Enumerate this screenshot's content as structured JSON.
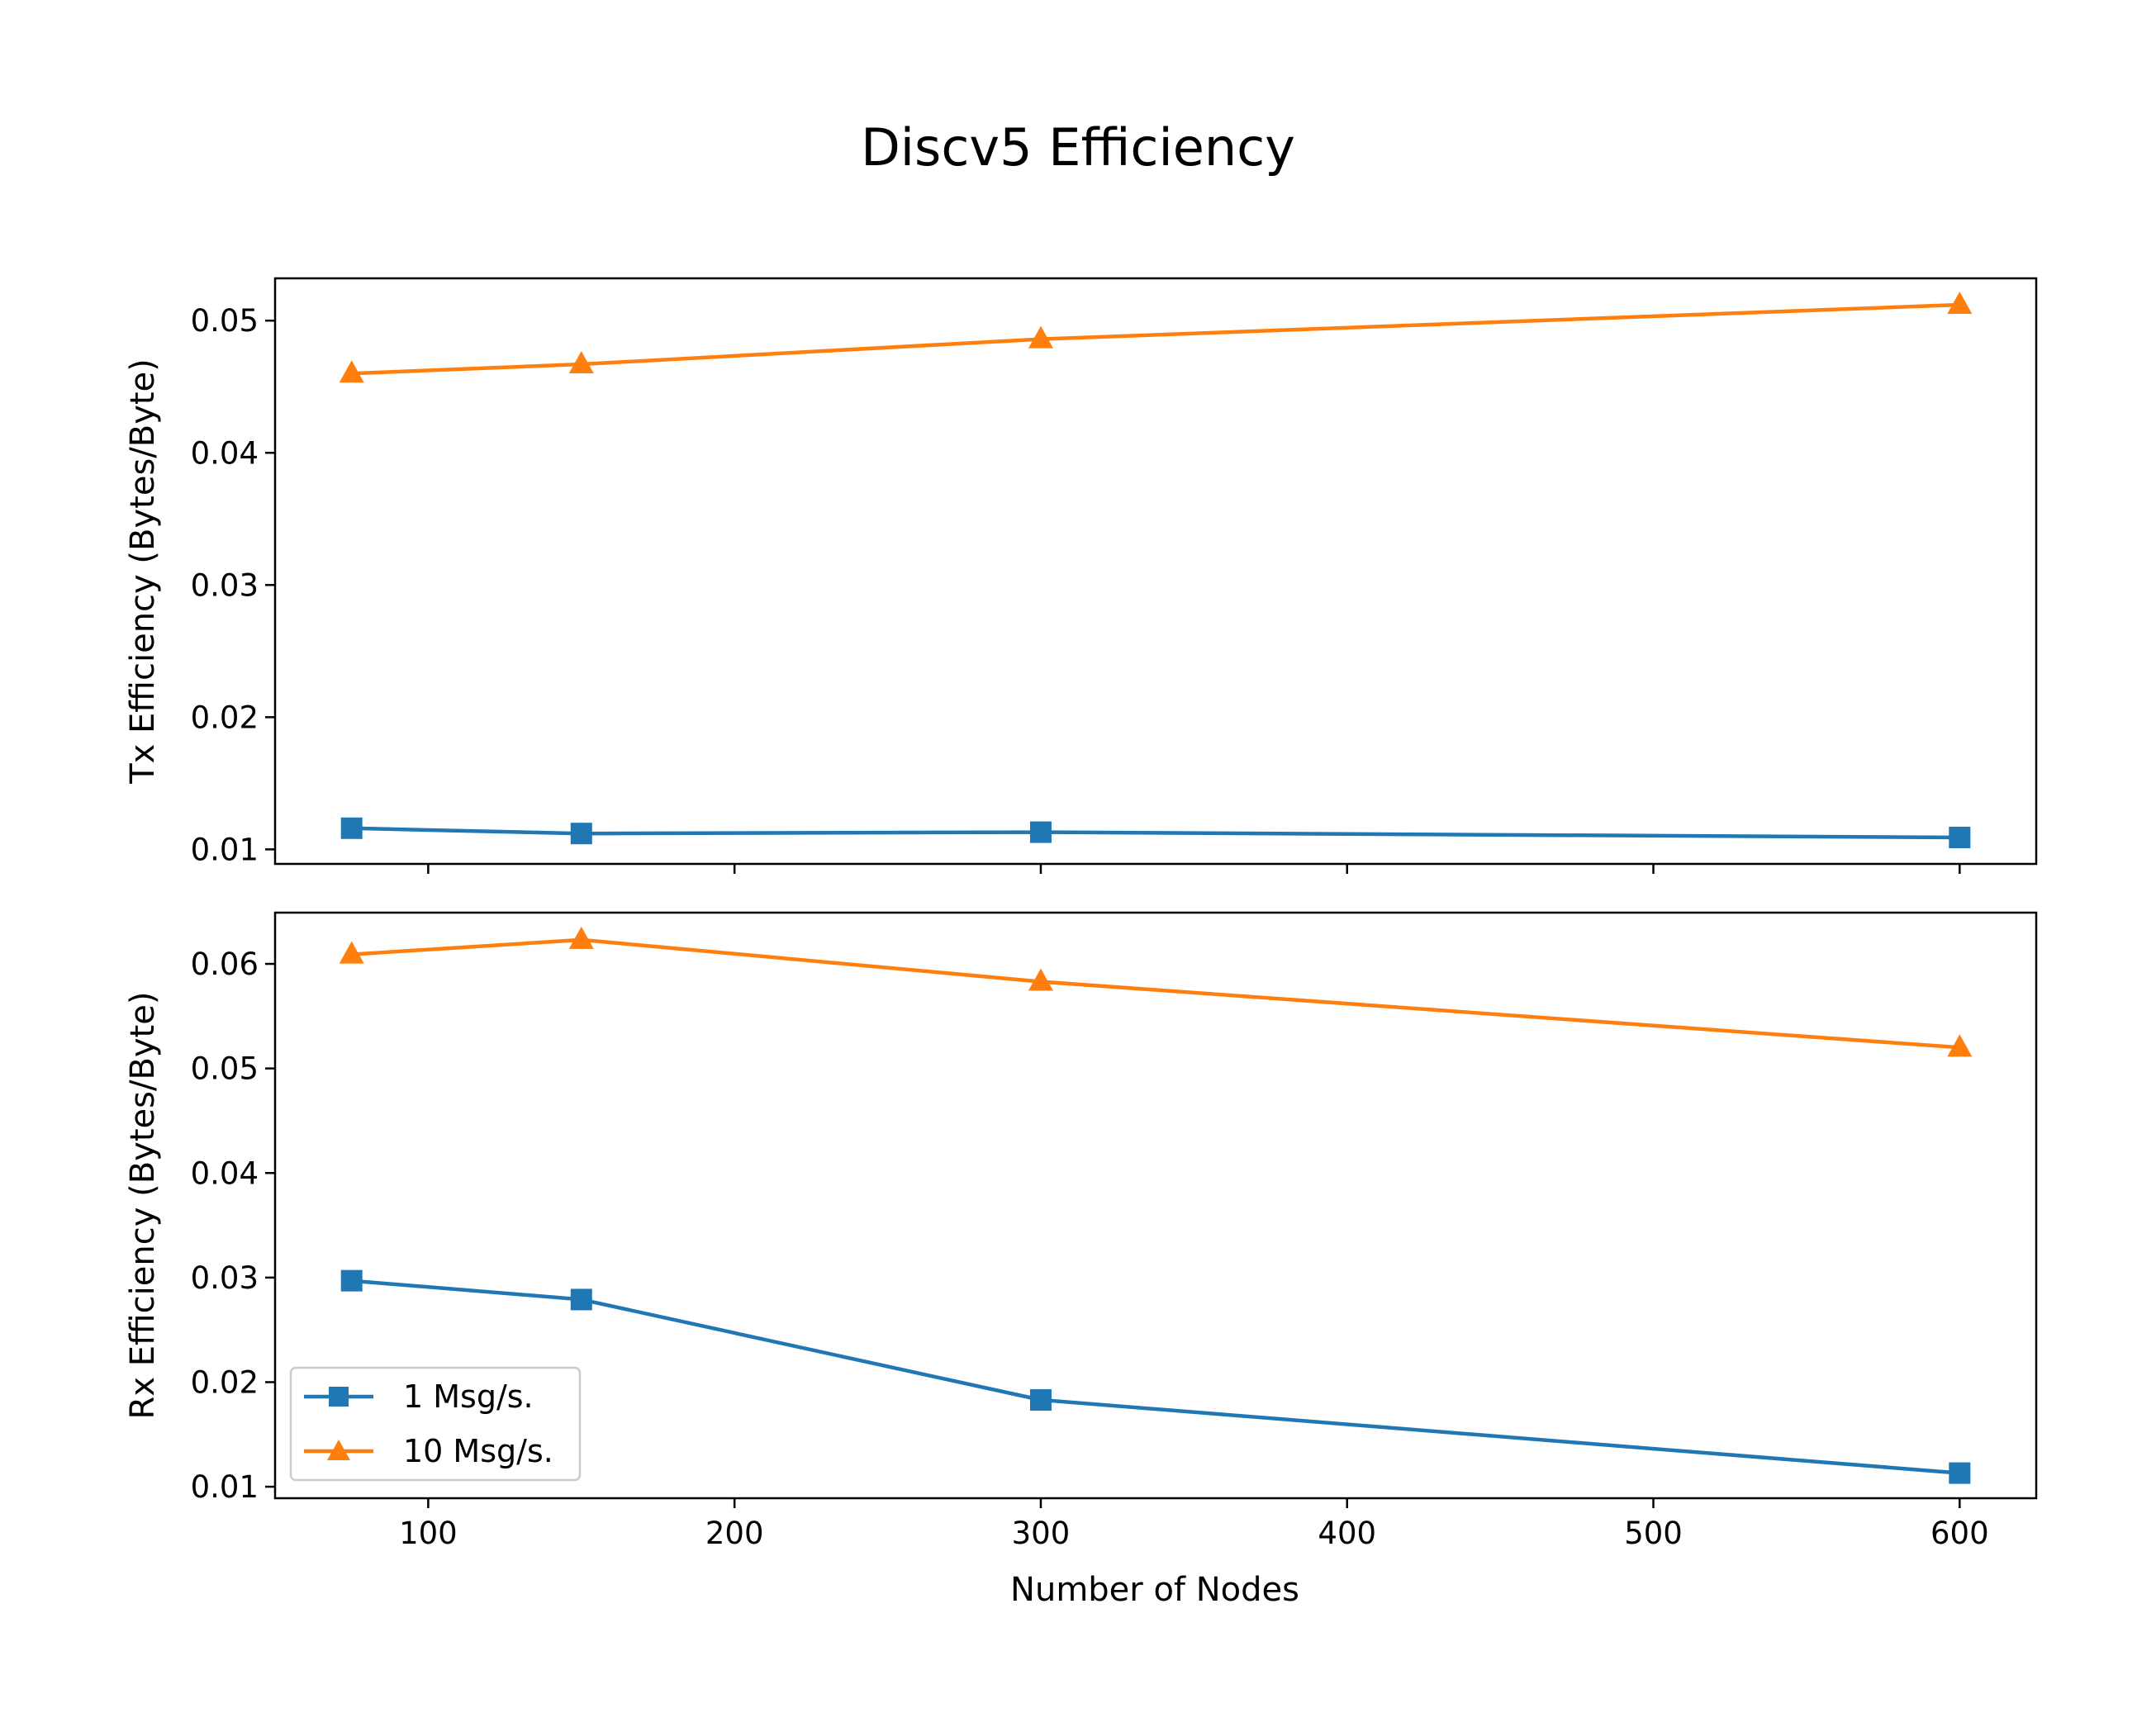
{
  "figure": {
    "title": "Discv5 Efficiency",
    "xlabel": "Number of Nodes"
  },
  "colors": {
    "1 Msg/s.": "#1f77b4",
    "10 Msg/s.": "#ff7f0e"
  },
  "legend": {
    "placement": "lower-left",
    "entries": [
      {
        "name": "1 Msg/s.",
        "marker": "square"
      },
      {
        "name": "10 Msg/s.",
        "marker": "triangle"
      }
    ]
  },
  "chart_data": [
    {
      "type": "line",
      "title": "",
      "ylabel": "Tx Efficiency (Bytes/Byte)",
      "xlabel": "",
      "xlim": [
        50,
        625
      ],
      "ylim": [
        0.0089,
        0.0532
      ],
      "x_ticks": [
        100,
        200,
        300,
        400,
        500,
        600
      ],
      "y_ticks": [
        0.01,
        0.02,
        0.03,
        0.04,
        0.05
      ],
      "y_tick_labels": [
        "0.01",
        "0.02",
        "0.03",
        "0.04",
        "0.05"
      ],
      "show_x_tick_labels": false,
      "grid": false,
      "x": [
        75,
        150,
        300,
        600
      ],
      "series": [
        {
          "name": "1 Msg/s.",
          "marker": "square",
          "values": [
            0.0116,
            0.0112,
            0.0113,
            0.0109
          ]
        },
        {
          "name": "10 Msg/s.",
          "marker": "triangle",
          "values": [
            0.046,
            0.0467,
            0.0486,
            0.0512
          ]
        }
      ]
    },
    {
      "type": "line",
      "title": "",
      "ylabel": "Rx Efficiency (Bytes/Byte)",
      "xlabel": "Number of Nodes",
      "xlim": [
        50,
        625
      ],
      "ylim": [
        0.0089,
        0.0649
      ],
      "x_ticks": [
        100,
        200,
        300,
        400,
        500,
        600
      ],
      "x_tick_labels": [
        "100",
        "200",
        "300",
        "400",
        "500",
        "600"
      ],
      "y_ticks": [
        0.01,
        0.02,
        0.03,
        0.04,
        0.05,
        0.06
      ],
      "y_tick_labels": [
        "0.01",
        "0.02",
        "0.03",
        "0.04",
        "0.05",
        "0.06"
      ],
      "show_x_tick_labels": true,
      "grid": false,
      "legend": "lower-left",
      "x": [
        75,
        150,
        300,
        600
      ],
      "series": [
        {
          "name": "1 Msg/s.",
          "marker": "square",
          "values": [
            0.0297,
            0.0279,
            0.0183,
            0.0113
          ]
        },
        {
          "name": "10 Msg/s.",
          "marker": "triangle",
          "values": [
            0.0609,
            0.0623,
            0.0583,
            0.052
          ]
        }
      ]
    }
  ]
}
